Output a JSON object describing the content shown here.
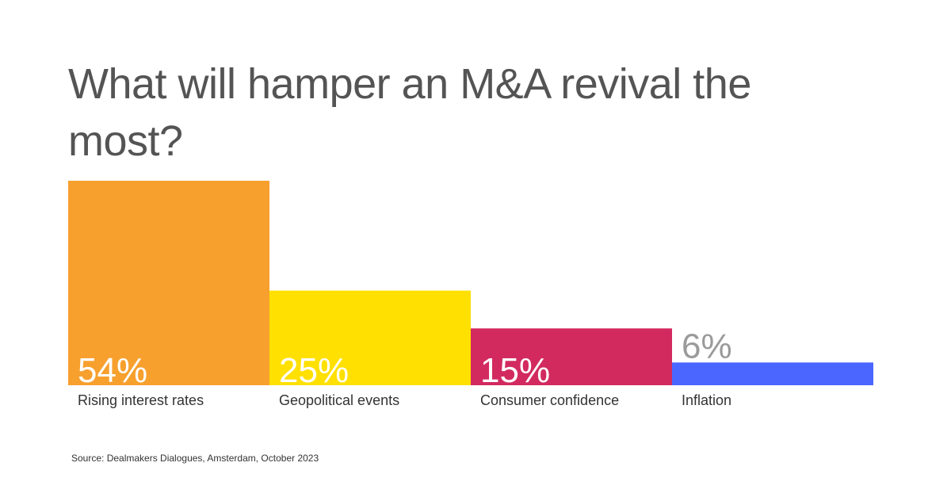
{
  "title": "What will hamper an M&A revival the most?",
  "source": "Source: Dealmakers Dialogues, Amsterdam, October 2023",
  "chart_data": {
    "type": "bar",
    "categories": [
      "Rising interest rates",
      "Geopolitical events",
      "Consumer confidence",
      "Inflation"
    ],
    "values": [
      54,
      25,
      15,
      6
    ],
    "value_labels": [
      "54%",
      "25%",
      "15%",
      "6%"
    ],
    "colors": [
      "#F7A02E",
      "#FFE000",
      "#D22A5F",
      "#4A66FF"
    ],
    "value_label_colors": [
      "#ffffff",
      "#ffffff",
      "#ffffff",
      "#9a9a9a"
    ],
    "title": "What will hamper an M&A revival the most?",
    "xlabel": "",
    "ylabel": "",
    "ylim": [
      0,
      54
    ],
    "grid": false
  }
}
